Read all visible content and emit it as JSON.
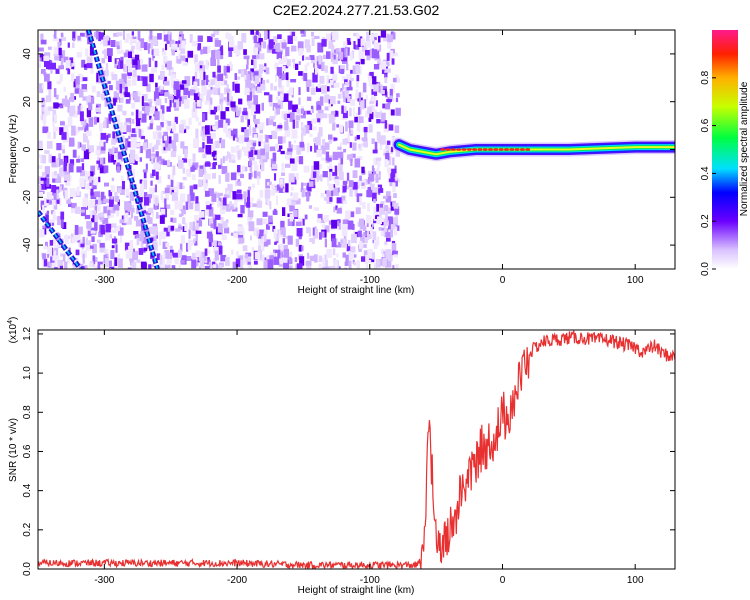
{
  "figure": {
    "title": "C2E2.2024.277.21.53.G02"
  },
  "chart_data": [
    {
      "type": "heatmap",
      "xlabel": "Height of straight line (km)",
      "ylabel": "Frequency (Hz)",
      "xlim": [
        -350,
        130
      ],
      "ylim": [
        -50,
        50
      ],
      "x_ticks": [
        "-300",
        "-200",
        "-100",
        "0",
        "100"
      ],
      "y_ticks": [
        "-40",
        "-20",
        "0",
        "20",
        "40"
      ],
      "colorbar": {
        "label": "Normalized spectral amplitude",
        "range": [
          0,
          1
        ],
        "ticks": [
          "0.0",
          "0.2",
          "0.4",
          "0.6",
          "0.8"
        ]
      },
      "noise_region_x": [
        -350,
        -80
      ],
      "carrier_track": [
        {
          "x": -78,
          "y": 2
        },
        {
          "x": -70,
          "y": 0
        },
        {
          "x": -60,
          "y": -1
        },
        {
          "x": -50,
          "y": -2
        },
        {
          "x": -40,
          "y": -1
        },
        {
          "x": -20,
          "y": 0
        },
        {
          "x": 0,
          "y": 0
        },
        {
          "x": 20,
          "y": 0
        },
        {
          "x": 50,
          "y": 0
        },
        {
          "x": 100,
          "y": 1
        },
        {
          "x": 130,
          "y": 1
        }
      ],
      "diagonal_traces": [
        {
          "from": {
            "x": -312,
            "y": 50
          },
          "to": {
            "x": -260,
            "y": -50
          }
        },
        {
          "from": {
            "x": -350,
            "y": -26
          },
          "to": {
            "x": -318,
            "y": -50
          }
        }
      ]
    },
    {
      "type": "line",
      "xlabel": "Height of straight line (km)",
      "ylabel": "SNR (10 * v/v)",
      "multiplier": "(x10",
      "multiplier_exp": "4",
      "multiplier_close": ")",
      "xlim": [
        -350,
        130
      ],
      "ylim": [
        0,
        1.22
      ],
      "x_ticks": [
        "-300",
        "-200",
        "-100",
        "0",
        "100"
      ],
      "y_ticks": [
        "0.0",
        "0.2",
        "0.4",
        "0.6",
        "0.8",
        "1.0",
        "1.2"
      ],
      "color": "#e83030",
      "series": [
        {
          "x": [
            -350,
            -300,
            -250,
            -200,
            -150,
            -100,
            -80,
            -65,
            -60,
            -57,
            -55,
            -52,
            -50,
            -45,
            -40,
            -35,
            -30,
            -25,
            -20,
            -15,
            -10,
            -5,
            0,
            5,
            10,
            20,
            30,
            40,
            50,
            60,
            70,
            80,
            90,
            100,
            105,
            110,
            115,
            120,
            125,
            130
          ],
          "y": [
            0.03,
            0.03,
            0.03,
            0.03,
            0.02,
            0.02,
            0.02,
            0.02,
            0.05,
            0.5,
            0.8,
            0.3,
            0.15,
            0.12,
            0.18,
            0.28,
            0.42,
            0.48,
            0.55,
            0.6,
            0.64,
            0.68,
            0.76,
            0.82,
            0.9,
            1.1,
            1.16,
            1.17,
            1.18,
            1.18,
            1.17,
            1.17,
            1.15,
            1.13,
            1.11,
            1.12,
            1.14,
            1.1,
            1.09,
            1.08
          ]
        }
      ]
    }
  ]
}
